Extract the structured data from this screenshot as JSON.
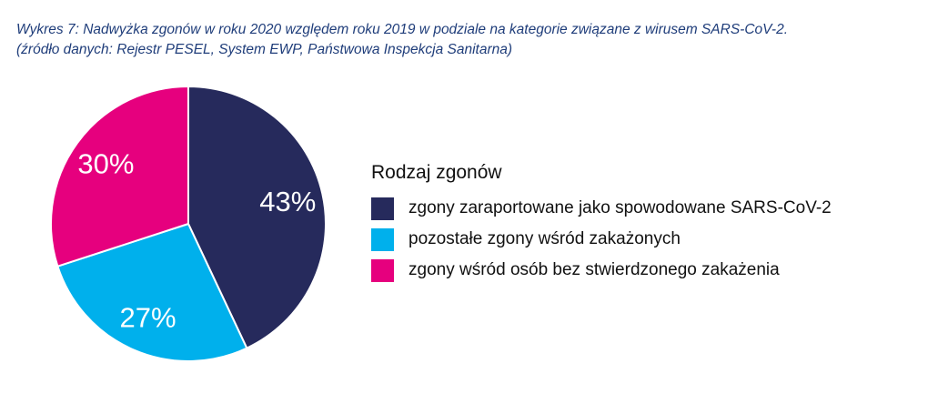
{
  "caption": {
    "line1": "Wykres 7: Nadwyżka zgonów w roku 2020 względem roku 2019 w podziale na kategorie związane z wirusem SARS-CoV-2.",
    "line2": "(źródło danych: Rejestr PESEL, System EWP, Państwowa Inspekcja Sanitarna)"
  },
  "colors": {
    "caption": "#1f3d7a",
    "dark_navy": "#262a5c",
    "cyan": "#00b0ec",
    "magenta": "#e6007e"
  },
  "chart_data": {
    "type": "pie",
    "legend_title": "Rodzaj zgonów",
    "legend_position": "right",
    "start_angle": "12 o'clock",
    "direction": "clockwise",
    "slices": [
      {
        "label": "zgony zaraportowane jako spowodowane SARS-CoV-2",
        "value": 43,
        "display": "43%",
        "color": "#262a5c"
      },
      {
        "label": "pozostałe zgony wśród zakażonych",
        "value": 27,
        "display": "27%",
        "color": "#00b0ec"
      },
      {
        "label": "zgony wśród osób bez stwierdzonego zakażenia",
        "value": 30,
        "display": "30%",
        "color": "#e6007e"
      }
    ]
  }
}
